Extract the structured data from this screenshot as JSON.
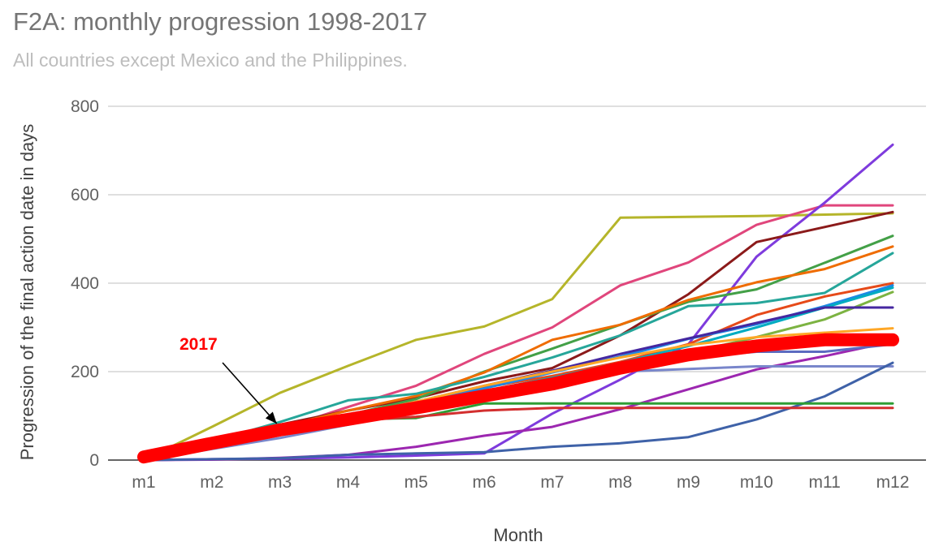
{
  "chart_data": {
    "type": "line",
    "title": "F2A: monthly progression 1998-2017",
    "subtitle": "All countries except Mexico and the Philippines.",
    "xlabel": "Month",
    "ylabel": "Progression of the final action date in days",
    "categories": [
      "m1",
      "m2",
      "m3",
      "m4",
      "m5",
      "m6",
      "m7",
      "m8",
      "m9",
      "m10",
      "m11",
      "m12"
    ],
    "ylim": [
      0,
      800
    ],
    "yticks": [
      0,
      200,
      400,
      600,
      800
    ],
    "grid": true,
    "legend": "none",
    "annotation": {
      "label": "2017",
      "target_category": "m3",
      "target_value": 68
    },
    "series": [
      {
        "name": "olive",
        "color": "#b5b52a",
        "values": [
          0,
          75,
          152,
          213,
          272,
          302,
          364,
          548,
          550,
          552,
          555,
          558
        ]
      },
      {
        "name": "pink",
        "color": "#e0467c",
        "values": [
          0,
          35,
          70,
          120,
          168,
          240,
          300,
          395,
          447,
          532,
          576,
          576
        ]
      },
      {
        "name": "purple",
        "color": "#7e3bdd",
        "values": [
          0,
          2,
          3,
          6,
          10,
          15,
          105,
          182,
          262,
          460,
          582,
          713
        ]
      },
      {
        "name": "dark-red",
        "color": "#8b1a1a",
        "values": [
          0,
          40,
          80,
          112,
          140,
          178,
          208,
          282,
          375,
          493,
          527,
          561
        ]
      },
      {
        "name": "green",
        "color": "#43a047",
        "values": [
          0,
          35,
          70,
          102,
          138,
          200,
          252,
          306,
          358,
          386,
          446,
          507
        ]
      },
      {
        "name": "orange",
        "color": "#ef6c00",
        "values": [
          0,
          38,
          75,
          112,
          145,
          198,
          272,
          306,
          362,
          402,
          432,
          483
        ]
      },
      {
        "name": "teal",
        "color": "#26a69a",
        "values": [
          0,
          42,
          86,
          135,
          150,
          188,
          232,
          282,
          348,
          355,
          378,
          468
        ]
      },
      {
        "name": "red-orange",
        "color": "#e64a19",
        "values": [
          0,
          35,
          70,
          100,
          128,
          164,
          190,
          222,
          262,
          328,
          370,
          400
        ]
      },
      {
        "name": "blue",
        "color": "#1e88e5",
        "values": [
          0,
          32,
          65,
          98,
          128,
          162,
          198,
          234,
          274,
          307,
          348,
          395
        ]
      },
      {
        "name": "cyan",
        "color": "#00acc1",
        "values": [
          0,
          30,
          62,
          92,
          122,
          156,
          186,
          220,
          258,
          300,
          345,
          390
        ]
      },
      {
        "name": "olive-green",
        "color": "#7cb342",
        "values": [
          0,
          30,
          60,
          90,
          120,
          150,
          182,
          212,
          242,
          278,
          318,
          380
        ]
      },
      {
        "name": "navy-purple",
        "color": "#4527a0",
        "values": [
          0,
          33,
          66,
          100,
          132,
          168,
          202,
          240,
          275,
          310,
          345,
          345
        ]
      },
      {
        "name": "magenta",
        "color": "#9c27b0",
        "values": [
          0,
          1,
          5,
          12,
          30,
          55,
          75,
          115,
          160,
          205,
          235,
          268
        ]
      },
      {
        "name": "amber",
        "color": "#ffa726",
        "values": [
          0,
          34,
          68,
          100,
          132,
          168,
          200,
          232,
          260,
          278,
          288,
          298
        ]
      },
      {
        "name": "slate",
        "color": "#5c6bc0",
        "values": [
          0,
          30,
          60,
          90,
          120,
          148,
          178,
          208,
          232,
          245,
          245,
          262
        ]
      },
      {
        "name": "steel",
        "color": "#7986cb",
        "values": [
          0,
          25,
          50,
          80,
          110,
          140,
          170,
          200,
          206,
          212,
          212,
          212
        ]
      },
      {
        "name": "dark-blue",
        "color": "#3f62a8",
        "values": [
          0,
          2,
          4,
          12,
          15,
          18,
          30,
          38,
          52,
          92,
          144,
          220
        ]
      },
      {
        "name": "green-flat",
        "color": "#2e9d34",
        "values": [
          0,
          30,
          60,
          92,
          95,
          128,
          128,
          128,
          128,
          128,
          128,
          128
        ]
      },
      {
        "name": "crimson-flat",
        "color": "#d32f2f",
        "values": [
          0,
          30,
          58,
          88,
          98,
          112,
          118,
          118,
          118,
          118,
          118,
          118
        ]
      },
      {
        "name": "2017",
        "color": "#ff0000",
        "values": [
          7,
          38,
          68,
          92,
          118,
          145,
          172,
          208,
          238,
          258,
          272,
          272
        ],
        "highlight": true
      }
    ]
  }
}
